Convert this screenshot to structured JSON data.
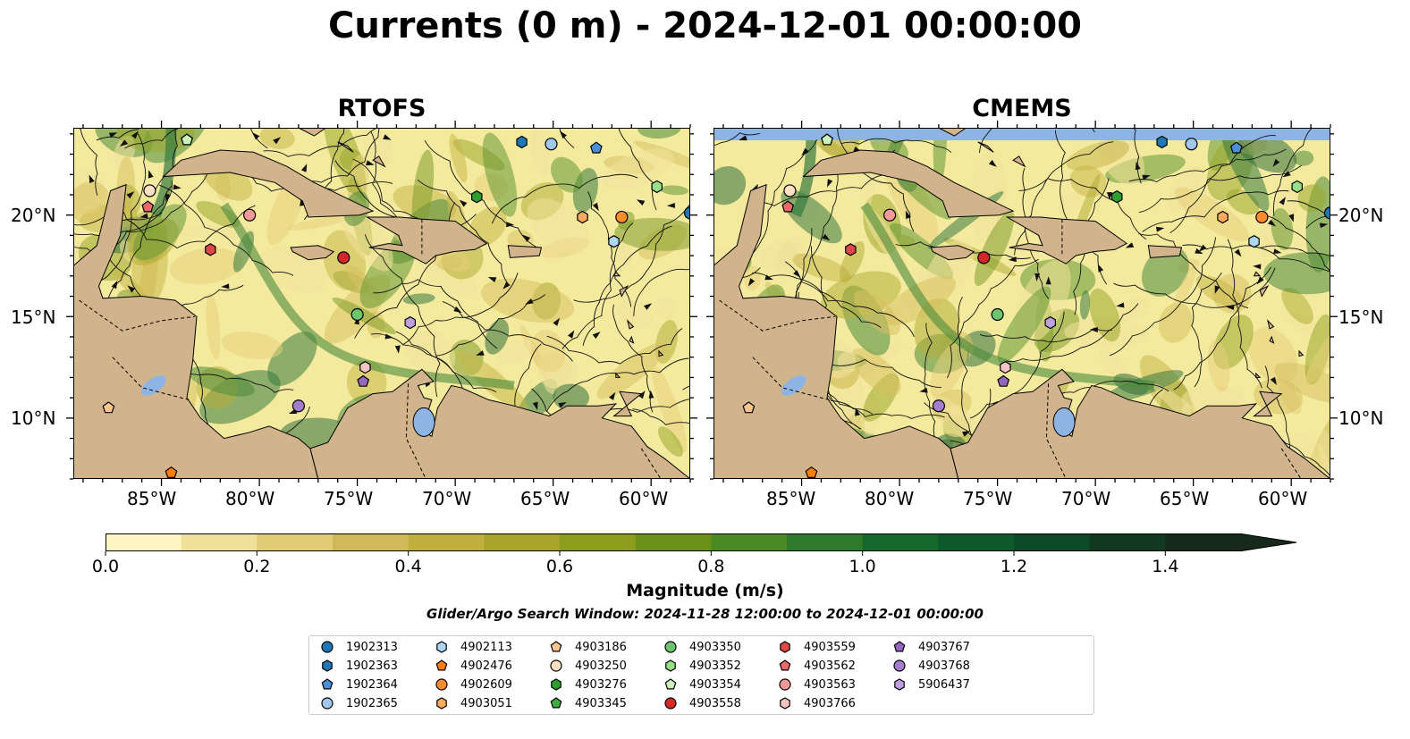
{
  "figure": {
    "title": "Currents (0 m) - 2024-12-01 00:00:00"
  },
  "panels": [
    {
      "title": "RTOFS"
    },
    {
      "title": "CMEMS"
    }
  ],
  "axes": {
    "x_ticks": [
      "85°W",
      "80°W",
      "75°W",
      "70°W",
      "65°W",
      "60°W"
    ],
    "y_ticks": [
      "20°N",
      "15°N",
      "10°N"
    ]
  },
  "colorbar": {
    "label": "Magnitude (m/s)",
    "range": [
      0.0,
      1.5
    ],
    "extend": "max",
    "ticks": [
      "0.0",
      "0.2",
      "0.4",
      "0.6",
      "0.8",
      "1.0",
      "1.2",
      "1.4"
    ],
    "colors": [
      "#fdf6c3",
      "#f0e09a",
      "#e1cc74",
      "#d2b957",
      "#bfaf3e",
      "#a9a42a",
      "#8c9d1b",
      "#6b9119",
      "#4b8a22",
      "#2d7a2a",
      "#16682f",
      "#0e5a2c",
      "#0d4a27",
      "#11391f",
      "#17291a"
    ]
  },
  "search_window": "Glider/Argo Search Window: 2024-11-28 12:00:00 to 2024-12-01 00:00:00",
  "colors": {
    "land": "#d2b48c",
    "water": "#f4ea9e",
    "lake": "#8db4e2",
    "cmems_nodata": "#8db4e2"
  },
  "legend": [
    {
      "label": "1902313",
      "marker": "circle",
      "color": "#1f77b4"
    },
    {
      "label": "1902363",
      "marker": "hexagon",
      "color": "#1f77b4"
    },
    {
      "label": "1902364",
      "marker": "pentagon",
      "color": "#4a90d9"
    },
    {
      "label": "1902365",
      "marker": "circle",
      "color": "#9fc8ec"
    },
    {
      "label": "4902113",
      "marker": "hexagon",
      "color": "#aed8f2"
    },
    {
      "label": "4902476",
      "marker": "pentagon",
      "color": "#ff7f0e"
    },
    {
      "label": "4902609",
      "marker": "circle",
      "color": "#ff8c2f"
    },
    {
      "label": "4903051",
      "marker": "hexagon",
      "color": "#ffab5e"
    },
    {
      "label": "4903186",
      "marker": "pentagon",
      "color": "#ffc58f"
    },
    {
      "label": "4903250",
      "marker": "circle",
      "color": "#ffe0c2"
    },
    {
      "label": "4903276",
      "marker": "hexagon",
      "color": "#2ca02c"
    },
    {
      "label": "4903345",
      "marker": "pentagon",
      "color": "#3fae3f"
    },
    {
      "label": "4903350",
      "marker": "circle",
      "color": "#6cc46c"
    },
    {
      "label": "4903352",
      "marker": "hexagon",
      "color": "#98df8a"
    },
    {
      "label": "4903354",
      "marker": "pentagon",
      "color": "#c9f2bd"
    },
    {
      "label": "4903558",
      "marker": "circle",
      "color": "#d62728"
    },
    {
      "label": "4903559",
      "marker": "hexagon",
      "color": "#e0474a"
    },
    {
      "label": "4903562",
      "marker": "pentagon",
      "color": "#ea6a6c"
    },
    {
      "label": "4903563",
      "marker": "circle",
      "color": "#f39a98"
    },
    {
      "label": "4903766",
      "marker": "hexagon",
      "color": "#f8c4c2"
    },
    {
      "label": "4903767",
      "marker": "pentagon",
      "color": "#9467bd"
    },
    {
      "label": "4903768",
      "marker": "circle",
      "color": "#a57dd0"
    },
    {
      "label": "5906437",
      "marker": "hexagon",
      "color": "#bf9fe0"
    }
  ],
  "floats": [
    {
      "id": "1902313",
      "lon": -58.0,
      "lat": 20.1
    },
    {
      "id": "1902363",
      "lon": -66.6,
      "lat": 23.6
    },
    {
      "id": "1902364",
      "lon": -62.8,
      "lat": 23.3
    },
    {
      "id": "1902365",
      "lon": -65.1,
      "lat": 23.5
    },
    {
      "id": "4902113",
      "lon": -61.9,
      "lat": 18.7
    },
    {
      "id": "4902476",
      "lon": -84.5,
      "lat": 7.3
    },
    {
      "id": "4902609",
      "lon": -61.5,
      "lat": 19.9
    },
    {
      "id": "4903051",
      "lon": -63.5,
      "lat": 19.9
    },
    {
      "id": "4903186",
      "lon": -87.7,
      "lat": 10.5
    },
    {
      "id": "4903250",
      "lon": -85.6,
      "lat": 21.2
    },
    {
      "id": "4903276",
      "lon": -68.9,
      "lat": 20.9
    },
    {
      "id": "4903345",
      "lon": -83.7,
      "lat": 23.7
    },
    {
      "id": "4903350",
      "lon": -75.0,
      "lat": 15.1
    },
    {
      "id": "4903352",
      "lon": -59.7,
      "lat": 21.4
    },
    {
      "id": "4903354",
      "lon": -83.7,
      "lat": 23.7
    },
    {
      "id": "4903558",
      "lon": -75.7,
      "lat": 17.9
    },
    {
      "id": "4903559",
      "lon": -82.5,
      "lat": 18.3
    },
    {
      "id": "4903562",
      "lon": -85.7,
      "lat": 20.4
    },
    {
      "id": "4903563",
      "lon": -80.5,
      "lat": 20.0
    },
    {
      "id": "4903766",
      "lon": -74.6,
      "lat": 12.5
    },
    {
      "id": "4903767",
      "lon": -74.7,
      "lat": 11.8
    },
    {
      "id": "4903768",
      "lon": -78.0,
      "lat": 10.6
    },
    {
      "id": "5906437",
      "lon": -72.3,
      "lat": 14.7
    }
  ]
}
